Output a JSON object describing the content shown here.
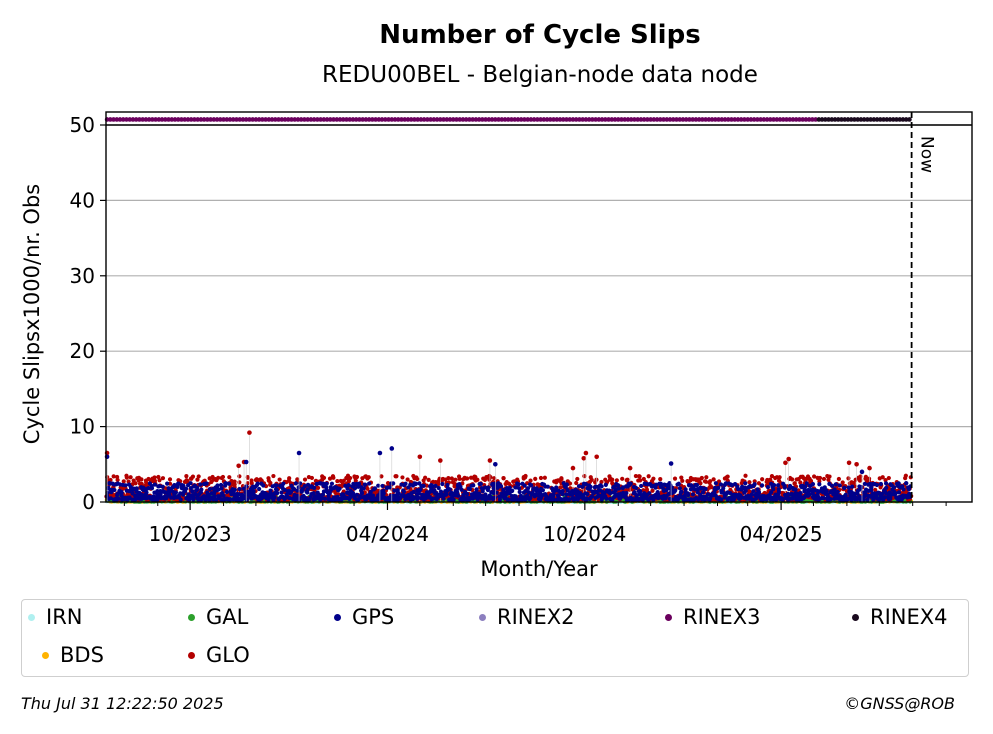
{
  "chart_data": {
    "type": "scatter",
    "title": "Number of Cycle Slips",
    "subtitle": "REDU00BEL - Belgian-node data node",
    "xlabel": "Month/Year",
    "ylabel": "Cycle Slipsx1000/nr. Obs",
    "y_ticks": [
      0,
      10,
      20,
      30,
      40,
      50
    ],
    "ylim": [
      0,
      50
    ],
    "x_range": [
      "2023-07-15",
      "2025-09-25"
    ],
    "x_major_ticks": [
      {
        "date": "2023-10-01",
        "label": "10/2023"
      },
      {
        "date": "2024-04-01",
        "label": "04/2024"
      },
      {
        "date": "2024-10-01",
        "label": "10/2024"
      },
      {
        "date": "2025-04-01",
        "label": "04/2025"
      }
    ],
    "x_minor_ticks": [
      "2023-08-01",
      "2023-09-01",
      "2023-11-01",
      "2023-12-01",
      "2024-01-01",
      "2024-02-01",
      "2024-03-01",
      "2024-05-01",
      "2024-06-01",
      "2024-07-01",
      "2024-08-01",
      "2024-09-01",
      "2024-11-01",
      "2024-12-01",
      "2025-01-01",
      "2025-02-01",
      "2025-03-01",
      "2025-05-01",
      "2025-06-01",
      "2025-07-01",
      "2025-08-01",
      "2025-09-01"
    ],
    "now_marker": {
      "date": "2025-07-31",
      "label": "Now"
    },
    "grid": "y",
    "series": [
      {
        "name": "GLO",
        "color": "#b30000",
        "start": "2023-07-16",
        "end": "2025-07-30",
        "typical": [
          0.3,
          3.5
        ],
        "peaks": [
          {
            "date": "2023-07-16",
            "value": 6.5
          },
          {
            "date": "2023-10-02",
            "value": 3.1
          },
          {
            "date": "2023-11-25",
            "value": 9.2
          },
          {
            "date": "2023-11-20",
            "value": 5.3
          },
          {
            "date": "2023-11-15",
            "value": 4.8
          },
          {
            "date": "2024-05-01",
            "value": 6.0
          },
          {
            "date": "2024-05-20",
            "value": 5.5
          },
          {
            "date": "2024-07-05",
            "value": 5.5
          },
          {
            "date": "2024-09-20",
            "value": 4.5
          },
          {
            "date": "2024-09-30",
            "value": 5.8
          },
          {
            "date": "2024-10-02",
            "value": 6.5
          },
          {
            "date": "2024-10-12",
            "value": 6.0
          },
          {
            "date": "2024-11-12",
            "value": 4.5
          },
          {
            "date": "2025-04-08",
            "value": 5.7
          },
          {
            "date": "2025-04-05",
            "value": 5.2
          },
          {
            "date": "2025-06-03",
            "value": 5.2
          },
          {
            "date": "2025-06-10",
            "value": 5.0
          },
          {
            "date": "2025-06-22",
            "value": 4.5
          }
        ]
      },
      {
        "name": "GPS",
        "color": "#00008b",
        "start": "2023-07-16",
        "end": "2025-07-30",
        "typical": [
          0.3,
          2.5
        ],
        "peaks": [
          {
            "date": "2023-07-16",
            "value": 6.0
          },
          {
            "date": "2023-11-22",
            "value": 5.3
          },
          {
            "date": "2024-01-10",
            "value": 6.5
          },
          {
            "date": "2024-03-25",
            "value": 6.5
          },
          {
            "date": "2024-04-05",
            "value": 7.1
          },
          {
            "date": "2024-07-10",
            "value": 5.0
          },
          {
            "date": "2024-12-20",
            "value": 5.1
          },
          {
            "date": "2025-06-15",
            "value": 4.0
          }
        ]
      },
      {
        "name": "GAL",
        "color": "#2ca02c",
        "start": "2023-07-16",
        "end": "2025-07-30",
        "typical": [
          0.05,
          0.8
        ],
        "peaks": []
      },
      {
        "name": "BDS",
        "color": "#ffb300",
        "start": "2023-07-16",
        "end": "2025-07-30",
        "typical": [
          0.05,
          0.4
        ],
        "peaks": []
      },
      {
        "name": "IRN",
        "color": "#b0f0f0",
        "start": "2023-07-16",
        "end": "2025-07-30",
        "typical": [
          0,
          0.2
        ],
        "peaks": []
      },
      {
        "name": "RINEX2",
        "color": "#8c7fbf",
        "points": []
      },
      {
        "name": "RINEX3",
        "color": "#6b005e",
        "start": "2023-07-16",
        "end": "2025-05-05",
        "value": 51
      },
      {
        "name": "RINEX4",
        "color": "#1a0a1e",
        "start": "2025-05-06",
        "end": "2025-07-30",
        "value": 51
      }
    ],
    "legend_position": "bottom"
  },
  "legend": [
    {
      "name": "IRN",
      "color": "#b0f0f0"
    },
    {
      "name": "GAL",
      "color": "#2ca02c"
    },
    {
      "name": "GPS",
      "color": "#00008b"
    },
    {
      "name": "RINEX2",
      "color": "#8c7fbf"
    },
    {
      "name": "RINEX3",
      "color": "#6b005e"
    },
    {
      "name": "RINEX4",
      "color": "#1a0a1e"
    },
    {
      "name": "BDS",
      "color": "#ffb300"
    },
    {
      "name": "GLO",
      "color": "#b30000"
    }
  ],
  "footer": {
    "timestamp": "Thu Jul 31 12:22:50 2025",
    "copyright": "©GNSS@ROB"
  }
}
